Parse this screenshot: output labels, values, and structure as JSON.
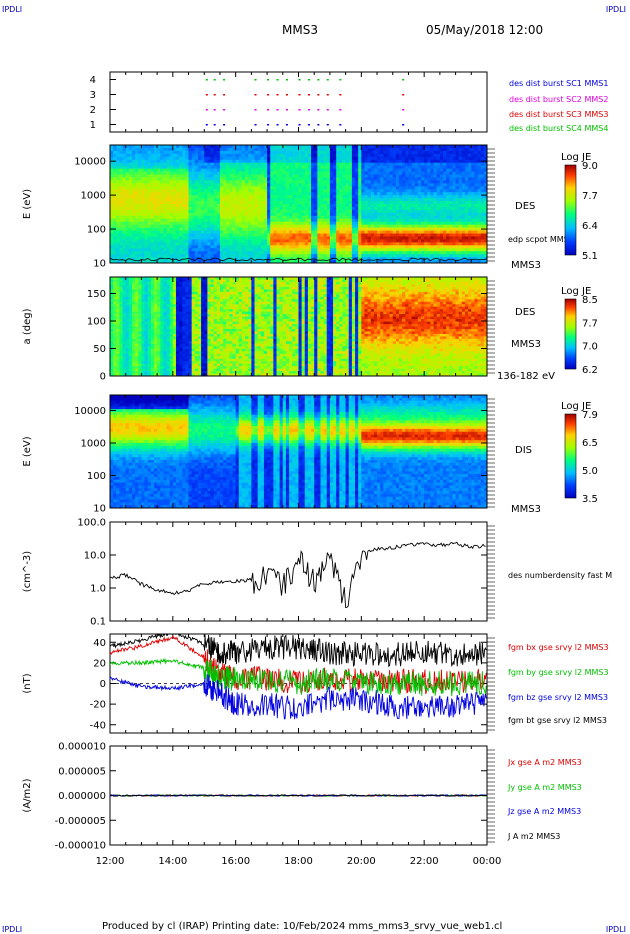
{
  "header": {
    "corner_tl": "IPDLI",
    "corner_tr": "IPDLI",
    "corner_bl": "IPDLI",
    "corner_br": "IPDLI",
    "spacecraft": "MMS3",
    "datetime": "05/May/2018 12:00",
    "footer": "Produced by cl (IRAP)   Printing date: 10/Feb/2024   mms_mms3_srvy_vue_web1.cl"
  },
  "colors": {
    "red": "#e00000",
    "green": "#00c000",
    "blue": "#0000e0",
    "magenta": "#e000e0",
    "black": "#000000"
  },
  "time_axis": {
    "start_hour": 12,
    "end_hour": 24,
    "tick_labels": [
      "12:00",
      "14:00",
      "16:00",
      "18:00",
      "20:00",
      "22:00",
      "00:00"
    ]
  },
  "chart_data": [
    {
      "type": "scatter",
      "panel": "burst",
      "yticks": [
        "4",
        "3",
        "2",
        "1"
      ],
      "ylim": [
        0.5,
        4.5
      ],
      "series": [
        {
          "name": "des dist burst SC1 MMS1",
          "y": 1,
          "color": "#0000e0"
        },
        {
          "name": "des dist burst SC2 MMS2",
          "y": 2,
          "color": "#e000e0"
        },
        {
          "name": "des dist burst SC3 MMS3",
          "y": 3,
          "color": "#e00000"
        },
        {
          "name": "des dist burst SC4 MMS4",
          "y": 4,
          "color": "#00c000"
        }
      ],
      "burst_times_hours": [
        15.05,
        15.3,
        15.6,
        16.6,
        17.0,
        17.3,
        17.6,
        18.0,
        18.3,
        18.6,
        18.9,
        19.3,
        21.3
      ]
    },
    {
      "type": "heatmap",
      "panel": "des-energy",
      "ylabel": "E (eV)",
      "yticks": [
        "10000",
        "1000",
        "100",
        "10"
      ],
      "scale": "log",
      "ylim": [
        10,
        30000
      ],
      "side_labels": [
        "DES",
        "edp scpot MMS3",
        "MMS3"
      ],
      "colorbar": {
        "title": "Log JE",
        "ticks": [
          "9.0",
          "7.7",
          "6.4",
          "5.1"
        ],
        "min": 5.1,
        "max": 9.0
      }
    },
    {
      "type": "heatmap",
      "panel": "des-pitch",
      "ylabel": "a (deg)",
      "yticks": [
        "150",
        "100",
        "50",
        "0"
      ],
      "ylim": [
        0,
        180
      ],
      "side_labels": [
        "DES",
        "MMS3",
        "136-182 eV"
      ],
      "colorbar": {
        "title": "Log JE",
        "ticks": [
          "8.5",
          "7.7",
          "7.0",
          "6.2"
        ],
        "min": 6.2,
        "max": 8.5
      }
    },
    {
      "type": "heatmap",
      "panel": "dis-energy",
      "ylabel": "E (eV)",
      "yticks": [
        "10000",
        "1000",
        "100",
        "10"
      ],
      "scale": "log",
      "ylim": [
        10,
        30000
      ],
      "side_labels": [
        "DIS",
        "MMS3"
      ],
      "colorbar": {
        "title": "Log JE",
        "ticks": [
          "7.9",
          "6.5",
          "5.0",
          "3.5"
        ],
        "min": 3.5,
        "max": 7.9
      }
    },
    {
      "type": "line",
      "panel": "density",
      "ylabel": "(cm^-3)",
      "yticks": [
        "100.0",
        "10.0",
        "1.0",
        "0.1"
      ],
      "scale": "log",
      "ylim": [
        0.1,
        100
      ],
      "series": [
        {
          "name": "des numberdensity fast M",
          "x": [
            12.0,
            12.5,
            13.0,
            13.5,
            14.0,
            14.5,
            15.0,
            15.5,
            16.0,
            16.5,
            17.0,
            17.5,
            18.0,
            18.5,
            19.0,
            19.5,
            20.0,
            20.5,
            21.0,
            21.5,
            22.0,
            22.5,
            23.0,
            23.5,
            24.0
          ],
          "y": [
            2.0,
            2.5,
            1.3,
            0.9,
            0.7,
            0.8,
            1.4,
            1.5,
            1.6,
            1.8,
            3.5,
            1.5,
            10.0,
            2.0,
            10.0,
            0.5,
            12.0,
            15.0,
            17.0,
            20.0,
            22.0,
            20.0,
            22.0,
            18.0,
            19.0
          ]
        }
      ]
    },
    {
      "type": "line",
      "panel": "magnetic-field",
      "ylabel": "(nT)",
      "yticks": [
        "40",
        "20",
        "0",
        "-20",
        "-40"
      ],
      "ylim": [
        -48,
        48
      ],
      "series": [
        {
          "name": "fgm bx gse srvy l2 MMS3",
          "color": "#e00000",
          "x": [
            12.0,
            13.0,
            14.0,
            15.0,
            15.5,
            16.0,
            17.0,
            18.0,
            19.0,
            20.0,
            21.0,
            22.0,
            23.0,
            24.0
          ],
          "y": [
            30.0,
            36.0,
            45.0,
            25.0,
            10.0,
            5.0,
            5.0,
            0.0,
            5.0,
            2.0,
            3.0,
            2.0,
            2.0,
            3.0
          ]
        },
        {
          "name": "fgm by gse srvy l2 MMS3",
          "color": "#00c000",
          "x": [
            12.0,
            13.0,
            14.0,
            15.0,
            15.5,
            16.0,
            17.0,
            18.0,
            19.0,
            20.0,
            21.0,
            22.0,
            23.0,
            24.0
          ],
          "y": [
            20.0,
            20.0,
            22.0,
            15.0,
            5.0,
            5.0,
            3.0,
            0.0,
            5.0,
            0.0,
            0.0,
            0.0,
            0.0,
            0.0
          ]
        },
        {
          "name": "fgm bz gse srvy l2 MMS3",
          "color": "#0000e0",
          "x": [
            12.0,
            13.0,
            14.0,
            15.0,
            15.5,
            16.0,
            17.0,
            18.0,
            19.0,
            20.0,
            21.0,
            22.0,
            23.0,
            24.0
          ],
          "y": [
            5.0,
            -3.0,
            -5.0,
            0.0,
            -10.0,
            -20.0,
            -20.0,
            -25.0,
            -15.0,
            -15.0,
            -22.0,
            -25.0,
            -22.0,
            -20.0
          ]
        },
        {
          "name": "fgm bt gse srvy l2 MMS3",
          "color": "#000000",
          "x": [
            12.0,
            13.0,
            14.0,
            15.0,
            15.5,
            16.0,
            17.0,
            18.0,
            19.0,
            20.0,
            21.0,
            22.0,
            23.0,
            24.0
          ],
          "y": [
            36.0,
            42.0,
            50.0,
            38.0,
            30.0,
            30.0,
            35.0,
            35.0,
            30.0,
            28.0,
            28.0,
            30.0,
            28.0,
            30.0
          ]
        }
      ]
    },
    {
      "type": "line",
      "panel": "current-density",
      "ylabel": "(A/m2)",
      "yticks": [
        "0.000010",
        "0.000005",
        "0.000000",
        "-0.000005",
        "-0.000010"
      ],
      "ylim": [
        -1e-05,
        1e-05
      ],
      "series": [
        {
          "name": "Jx gse A m2 MMS3",
          "color": "#e00000",
          "value": 0.0
        },
        {
          "name": "Jy gse A m2 MMS3",
          "color": "#00c000",
          "value": 0.0
        },
        {
          "name": "Jz gse A m2 MMS3",
          "color": "#0000e0",
          "value": 0.0
        },
        {
          "name": "J A m2 MMS3",
          "color": "#000000",
          "value": 0.0
        }
      ]
    }
  ]
}
